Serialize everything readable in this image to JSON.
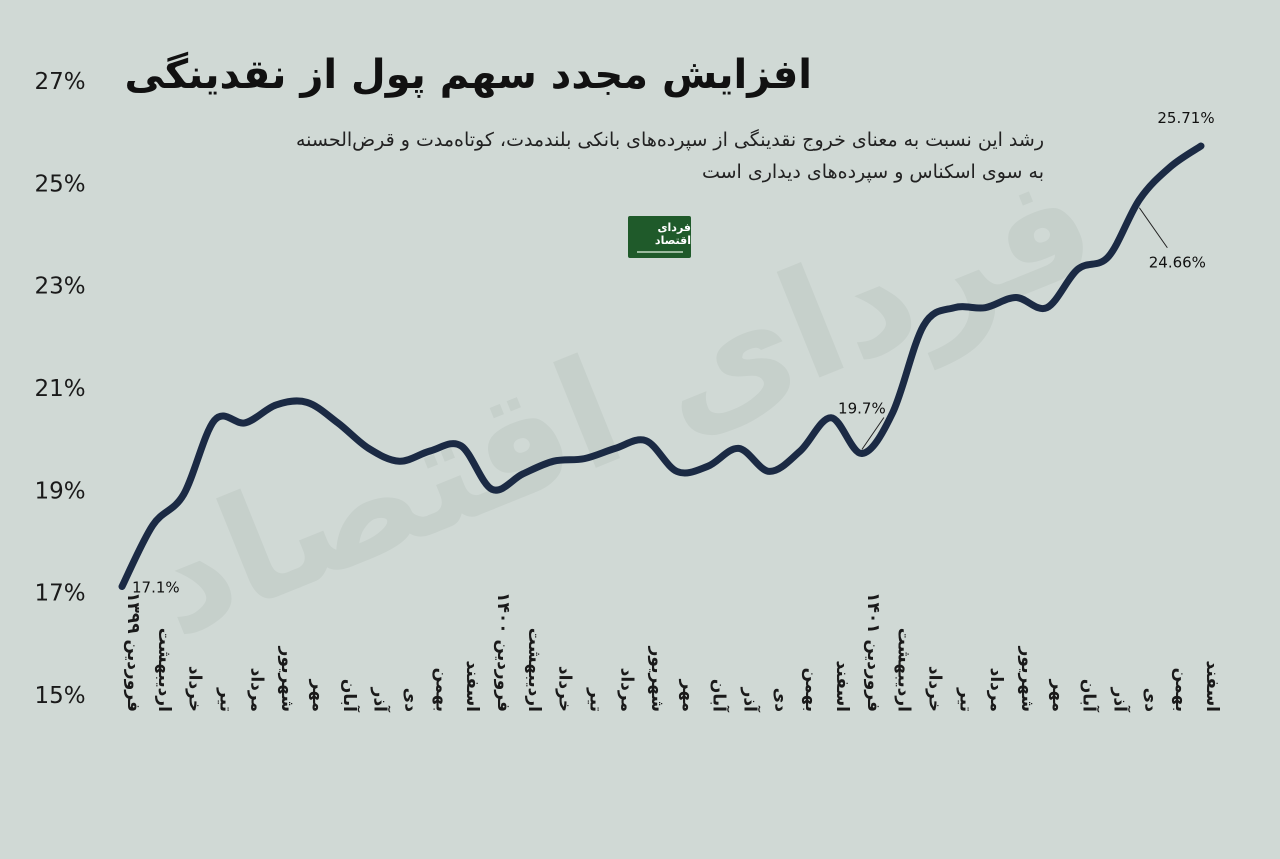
{
  "title": "افزایش مجدد سهم پول از نقدینگی",
  "subtitle_line1": "رشد این نسبت به معنای خروج نقدینگی از سپرده‌های بانکی بلندمدت، کوتاه‌مدت و قرض‌الحسنه",
  "subtitle_line2": "به سوی اسکناس و سپرده‌های دیداری است",
  "logo_text": "فردای اقتصاد",
  "watermark_text": "فردای اقتصاد",
  "colors": {
    "background": "#d0d9d5",
    "line": "#1b2a44",
    "logo": "#1f5a2a"
  },
  "chart_data": {
    "type": "line",
    "title": "افزایش مجدد سهم پول از نقدینگی",
    "ylim": [
      15,
      27
    ],
    "yticks": [
      15,
      17,
      19,
      21,
      23,
      25,
      27
    ],
    "ytick_labels": [
      "15%",
      "17%",
      "19%",
      "21%",
      "23%",
      "25%",
      "27%"
    ],
    "grid": false,
    "categories": [
      "فروردین ۱۳۹۹",
      "اردیبهشت",
      "خرداد",
      "تیر",
      "مرداد",
      "شهریور",
      "مهر",
      "آبان",
      "آذر",
      "دی",
      "بهمن",
      "اسفند",
      "فروردین ۱۴۰۰",
      "اردیبهشت",
      "خرداد",
      "تیر",
      "مرداد",
      "شهریور",
      "مهر",
      "آبان",
      "آذر",
      "دی",
      "بهمن",
      "اسفند",
      "فروردین ۱۴۰۱",
      "اردیبهشت",
      "خرداد",
      "تیر",
      "مرداد",
      "شهریور",
      "مهر",
      "آبان",
      "آذر",
      "دی",
      "بهمن",
      "اسفند"
    ],
    "values": [
      17.1,
      18.3,
      18.9,
      20.35,
      20.3,
      20.65,
      20.7,
      20.3,
      19.8,
      19.55,
      19.75,
      19.85,
      19.0,
      19.3,
      19.55,
      19.6,
      19.8,
      19.95,
      19.35,
      19.45,
      19.8,
      19.35,
      19.75,
      20.4,
      19.7,
      20.5,
      22.2,
      22.55,
      22.55,
      22.75,
      22.55,
      23.3,
      23.55,
      24.66,
      25.3,
      25.71
    ],
    "annotations": [
      {
        "index": 0,
        "label": "17.1%"
      },
      {
        "index": 24,
        "label": "19.7%"
      },
      {
        "index": 33,
        "label": "24.66%"
      },
      {
        "index": 35,
        "label": "25.71%"
      }
    ]
  }
}
